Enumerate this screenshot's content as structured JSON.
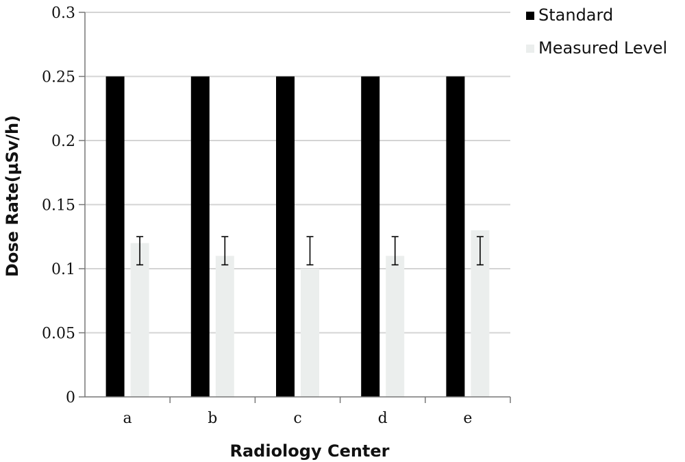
{
  "chart_data": {
    "type": "bar",
    "title": "",
    "xlabel": "Radiology Center",
    "ylabel": "Dose Rate(µSv/h)",
    "ylim": [
      0,
      0.3
    ],
    "yticks": [
      0,
      0.05,
      0.1,
      0.15,
      0.2,
      0.25,
      0.3
    ],
    "ytick_labels": [
      "0",
      "0.05",
      "0.1",
      "0.15",
      "0.2",
      "0.25",
      "0.3"
    ],
    "categories": [
      "a",
      "b",
      "c",
      "d",
      "e"
    ],
    "grid": true,
    "legend_position": "top-right",
    "series": [
      {
        "name": "Standard",
        "color": "#000000",
        "values": [
          0.25,
          0.25,
          0.25,
          0.25,
          0.25
        ]
      },
      {
        "name": "Measured Level",
        "color": "#ebeeed",
        "values": [
          0.12,
          0.11,
          0.1,
          0.11,
          0.13
        ],
        "error_bars": [
          [
            0.103,
            0.125
          ],
          [
            0.103,
            0.125
          ],
          [
            0.103,
            0.125
          ],
          [
            0.103,
            0.125
          ],
          [
            0.103,
            0.125
          ]
        ]
      }
    ]
  }
}
